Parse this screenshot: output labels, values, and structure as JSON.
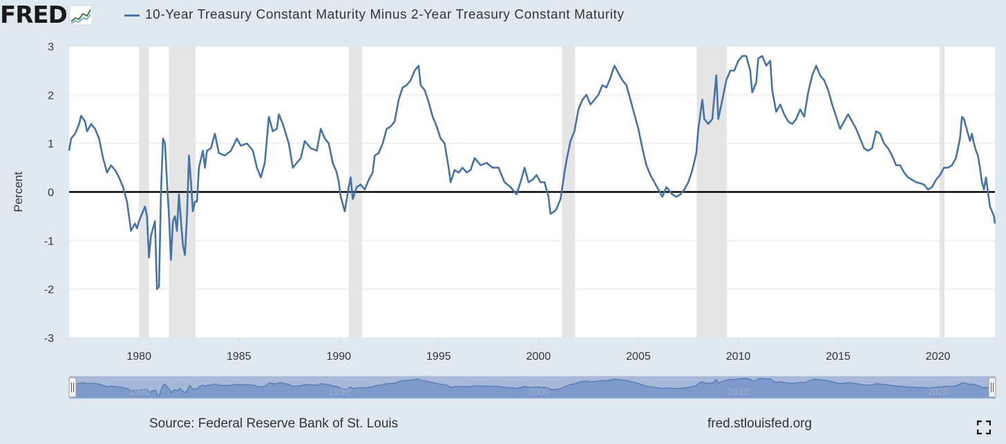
{
  "logo": {
    "text": "FRED",
    "icon": "chart-line-icon"
  },
  "legend": {
    "label": "10-Year Treasury Constant Maturity Minus 2-Year Treasury Constant Maturity",
    "color": "#4572a7"
  },
  "footer": {
    "source": "Source: Federal Reserve Bank of St. Louis",
    "url": "fred.stlouisfed.org"
  },
  "fullscreen_icon": "fullscreen-icon",
  "chart_data": {
    "type": "line",
    "title": "10-Year Treasury Constant Maturity Minus 2-Year Treasury Constant Maturity",
    "ylabel": "Percent",
    "xlabel": "",
    "xlim": [
      1976.5,
      2022.85
    ],
    "ylim": [
      -3,
      3
    ],
    "yticks": [
      3,
      2,
      1,
      0,
      -1,
      -2,
      -3
    ],
    "xticks": [
      1980,
      1985,
      1990,
      1995,
      2000,
      2005,
      2010,
      2015,
      2020
    ],
    "grid": true,
    "legend_position": "top",
    "zero_line": true,
    "recessions": [
      [
        1980.0,
        1980.5
      ],
      [
        1981.5,
        1982.83
      ],
      [
        1990.5,
        1991.17
      ],
      [
        2001.17,
        2001.83
      ],
      [
        2007.92,
        2009.42
      ],
      [
        2020.08,
        2020.33
      ]
    ],
    "series": [
      {
        "name": "10-Year Treasury Constant Maturity Minus 2-Year Treasury Constant Maturity",
        "color": "#4572a7",
        "points": [
          [
            1976.5,
            0.85
          ],
          [
            1976.6,
            1.1
          ],
          [
            1976.8,
            1.2
          ],
          [
            1977.0,
            1.4
          ],
          [
            1977.1,
            1.57
          ],
          [
            1977.3,
            1.45
          ],
          [
            1977.4,
            1.25
          ],
          [
            1977.6,
            1.4
          ],
          [
            1977.8,
            1.3
          ],
          [
            1978.0,
            1.1
          ],
          [
            1978.2,
            0.7
          ],
          [
            1978.4,
            0.4
          ],
          [
            1978.6,
            0.55
          ],
          [
            1978.8,
            0.45
          ],
          [
            1979.0,
            0.3
          ],
          [
            1979.2,
            0.1
          ],
          [
            1979.4,
            -0.2
          ],
          [
            1979.5,
            -0.5
          ],
          [
            1979.6,
            -0.8
          ],
          [
            1979.8,
            -0.65
          ],
          [
            1979.9,
            -0.75
          ],
          [
            1980.0,
            -0.6
          ],
          [
            1980.2,
            -0.4
          ],
          [
            1980.3,
            -0.3
          ],
          [
            1980.4,
            -0.5
          ],
          [
            1980.5,
            -1.35
          ],
          [
            1980.6,
            -0.9
          ],
          [
            1980.8,
            -0.6
          ],
          [
            1980.9,
            -2.0
          ],
          [
            1981.0,
            -1.95
          ],
          [
            1981.1,
            0.0
          ],
          [
            1981.2,
            1.1
          ],
          [
            1981.3,
            1.0
          ],
          [
            1981.4,
            0.2
          ],
          [
            1981.5,
            -0.5
          ],
          [
            1981.6,
            -1.4
          ],
          [
            1981.7,
            -0.6
          ],
          [
            1981.8,
            -0.5
          ],
          [
            1981.9,
            -0.8
          ],
          [
            1982.0,
            -0.05
          ],
          [
            1982.1,
            -0.6
          ],
          [
            1982.2,
            -1.1
          ],
          [
            1982.3,
            -1.3
          ],
          [
            1982.4,
            -0.5
          ],
          [
            1982.5,
            0.75
          ],
          [
            1982.6,
            0.2
          ],
          [
            1982.7,
            -0.4
          ],
          [
            1982.8,
            -0.2
          ],
          [
            1982.9,
            -0.2
          ],
          [
            1983.0,
            0.5
          ],
          [
            1983.2,
            0.85
          ],
          [
            1983.3,
            0.5
          ],
          [
            1983.4,
            0.85
          ],
          [
            1983.6,
            0.9
          ],
          [
            1983.8,
            1.2
          ],
          [
            1984.0,
            0.8
          ],
          [
            1984.3,
            0.75
          ],
          [
            1984.6,
            0.85
          ],
          [
            1984.9,
            1.1
          ],
          [
            1985.1,
            0.95
          ],
          [
            1985.4,
            1.0
          ],
          [
            1985.7,
            0.85
          ],
          [
            1985.9,
            0.5
          ],
          [
            1986.1,
            0.3
          ],
          [
            1986.3,
            0.6
          ],
          [
            1986.5,
            1.55
          ],
          [
            1986.7,
            1.25
          ],
          [
            1986.9,
            1.3
          ],
          [
            1987.0,
            1.6
          ],
          [
            1987.2,
            1.4
          ],
          [
            1987.5,
            1.0
          ],
          [
            1987.7,
            0.5
          ],
          [
            1987.9,
            0.6
          ],
          [
            1988.1,
            0.7
          ],
          [
            1988.3,
            1.05
          ],
          [
            1988.6,
            0.9
          ],
          [
            1988.9,
            0.85
          ],
          [
            1989.1,
            1.3
          ],
          [
            1989.3,
            1.1
          ],
          [
            1989.5,
            1.0
          ],
          [
            1989.7,
            0.6
          ],
          [
            1989.9,
            0.4
          ],
          [
            1990.0,
            0.2
          ],
          [
            1990.1,
            -0.1
          ],
          [
            1990.3,
            -0.4
          ],
          [
            1990.5,
            0.1
          ],
          [
            1990.6,
            0.3
          ],
          [
            1990.7,
            -0.15
          ],
          [
            1990.9,
            0.1
          ],
          [
            1991.1,
            0.15
          ],
          [
            1991.3,
            0.05
          ],
          [
            1991.5,
            0.25
          ],
          [
            1991.7,
            0.4
          ],
          [
            1991.8,
            0.75
          ],
          [
            1992.0,
            0.8
          ],
          [
            1992.2,
            1.0
          ],
          [
            1992.4,
            1.3
          ],
          [
            1992.6,
            1.35
          ],
          [
            1992.8,
            1.45
          ],
          [
            1993.0,
            1.9
          ],
          [
            1993.2,
            2.15
          ],
          [
            1993.4,
            2.2
          ],
          [
            1993.6,
            2.3
          ],
          [
            1993.8,
            2.5
          ],
          [
            1994.0,
            2.6
          ],
          [
            1994.1,
            2.2
          ],
          [
            1994.3,
            2.1
          ],
          [
            1994.5,
            1.85
          ],
          [
            1994.7,
            1.55
          ],
          [
            1994.9,
            1.35
          ],
          [
            1995.1,
            1.1
          ],
          [
            1995.3,
            1.0
          ],
          [
            1995.5,
            0.5
          ],
          [
            1995.6,
            0.2
          ],
          [
            1995.8,
            0.45
          ],
          [
            1996.0,
            0.4
          ],
          [
            1996.2,
            0.5
          ],
          [
            1996.4,
            0.4
          ],
          [
            1996.6,
            0.45
          ],
          [
            1996.8,
            0.7
          ],
          [
            1997.1,
            0.55
          ],
          [
            1997.4,
            0.6
          ],
          [
            1997.7,
            0.5
          ],
          [
            1998.0,
            0.5
          ],
          [
            1998.3,
            0.2
          ],
          [
            1998.6,
            0.1
          ],
          [
            1998.9,
            -0.05
          ],
          [
            1999.1,
            0.2
          ],
          [
            1999.3,
            0.5
          ],
          [
            1999.5,
            0.2
          ],
          [
            1999.7,
            0.25
          ],
          [
            1999.9,
            0.35
          ],
          [
            2000.1,
            0.2
          ],
          [
            2000.3,
            0.2
          ],
          [
            2000.5,
            -0.1
          ],
          [
            2000.6,
            -0.45
          ],
          [
            2000.8,
            -0.4
          ],
          [
            2000.9,
            -0.35
          ],
          [
            2001.1,
            -0.15
          ],
          [
            2001.3,
            0.4
          ],
          [
            2001.4,
            0.65
          ],
          [
            2001.6,
            1.05
          ],
          [
            2001.8,
            1.25
          ],
          [
            2002.0,
            1.7
          ],
          [
            2002.2,
            1.9
          ],
          [
            2002.4,
            2.0
          ],
          [
            2002.6,
            1.8
          ],
          [
            2002.8,
            1.9
          ],
          [
            2003.0,
            2.0
          ],
          [
            2003.2,
            2.2
          ],
          [
            2003.4,
            2.15
          ],
          [
            2003.6,
            2.35
          ],
          [
            2003.8,
            2.6
          ],
          [
            2004.0,
            2.45
          ],
          [
            2004.2,
            2.3
          ],
          [
            2004.4,
            2.2
          ],
          [
            2004.6,
            1.9
          ],
          [
            2004.8,
            1.6
          ],
          [
            2005.0,
            1.3
          ],
          [
            2005.2,
            0.9
          ],
          [
            2005.4,
            0.55
          ],
          [
            2005.6,
            0.35
          ],
          [
            2005.8,
            0.2
          ],
          [
            2006.0,
            0.05
          ],
          [
            2006.2,
            -0.1
          ],
          [
            2006.4,
            0.1
          ],
          [
            2006.5,
            0.05
          ],
          [
            2006.7,
            -0.05
          ],
          [
            2006.9,
            -0.1
          ],
          [
            2007.1,
            -0.05
          ],
          [
            2007.3,
            0.05
          ],
          [
            2007.5,
            0.2
          ],
          [
            2007.7,
            0.45
          ],
          [
            2007.9,
            0.8
          ],
          [
            2008.0,
            1.3
          ],
          [
            2008.2,
            1.9
          ],
          [
            2008.3,
            1.5
          ],
          [
            2008.5,
            1.4
          ],
          [
            2008.7,
            1.5
          ],
          [
            2008.9,
            2.4
          ],
          [
            2009.0,
            1.5
          ],
          [
            2009.2,
            1.9
          ],
          [
            2009.4,
            2.3
          ],
          [
            2009.6,
            2.5
          ],
          [
            2009.8,
            2.5
          ],
          [
            2010.0,
            2.7
          ],
          [
            2010.2,
            2.8
          ],
          [
            2010.4,
            2.8
          ],
          [
            2010.6,
            2.5
          ],
          [
            2010.7,
            2.05
          ],
          [
            2010.9,
            2.25
          ],
          [
            2011.0,
            2.75
          ],
          [
            2011.2,
            2.8
          ],
          [
            2011.4,
            2.6
          ],
          [
            2011.6,
            2.7
          ],
          [
            2011.7,
            2.1
          ],
          [
            2011.9,
            1.65
          ],
          [
            2012.1,
            1.8
          ],
          [
            2012.3,
            1.6
          ],
          [
            2012.5,
            1.45
          ],
          [
            2012.7,
            1.4
          ],
          [
            2012.9,
            1.5
          ],
          [
            2013.1,
            1.7
          ],
          [
            2013.3,
            1.55
          ],
          [
            2013.5,
            2.05
          ],
          [
            2013.7,
            2.4
          ],
          [
            2013.9,
            2.6
          ],
          [
            2014.1,
            2.4
          ],
          [
            2014.3,
            2.3
          ],
          [
            2014.5,
            2.1
          ],
          [
            2014.7,
            1.8
          ],
          [
            2014.9,
            1.55
          ],
          [
            2015.1,
            1.3
          ],
          [
            2015.3,
            1.45
          ],
          [
            2015.5,
            1.6
          ],
          [
            2015.7,
            1.45
          ],
          [
            2015.9,
            1.3
          ],
          [
            2016.1,
            1.1
          ],
          [
            2016.3,
            0.9
          ],
          [
            2016.5,
            0.85
          ],
          [
            2016.7,
            0.9
          ],
          [
            2016.9,
            1.25
          ],
          [
            2017.1,
            1.2
          ],
          [
            2017.3,
            1.0
          ],
          [
            2017.5,
            0.9
          ],
          [
            2017.7,
            0.75
          ],
          [
            2017.9,
            0.55
          ],
          [
            2018.1,
            0.55
          ],
          [
            2018.3,
            0.4
          ],
          [
            2018.5,
            0.3
          ],
          [
            2018.7,
            0.25
          ],
          [
            2018.9,
            0.2
          ],
          [
            2019.1,
            0.18
          ],
          [
            2019.3,
            0.15
          ],
          [
            2019.5,
            0.05
          ],
          [
            2019.7,
            0.1
          ],
          [
            2019.9,
            0.25
          ],
          [
            2020.1,
            0.35
          ],
          [
            2020.3,
            0.5
          ],
          [
            2020.5,
            0.5
          ],
          [
            2020.7,
            0.55
          ],
          [
            2020.9,
            0.7
          ],
          [
            2021.1,
            1.1
          ],
          [
            2021.2,
            1.55
          ],
          [
            2021.3,
            1.5
          ],
          [
            2021.5,
            1.2
          ],
          [
            2021.6,
            1.05
          ],
          [
            2021.7,
            1.2
          ],
          [
            2021.8,
            1.0
          ],
          [
            2021.9,
            0.85
          ],
          [
            2022.0,
            0.75
          ],
          [
            2022.1,
            0.5
          ],
          [
            2022.2,
            0.2
          ],
          [
            2022.3,
            0.05
          ],
          [
            2022.4,
            0.3
          ],
          [
            2022.5,
            0.0
          ],
          [
            2022.6,
            -0.3
          ],
          [
            2022.7,
            -0.4
          ],
          [
            2022.8,
            -0.5
          ],
          [
            2022.85,
            -0.65
          ]
        ]
      }
    ]
  }
}
